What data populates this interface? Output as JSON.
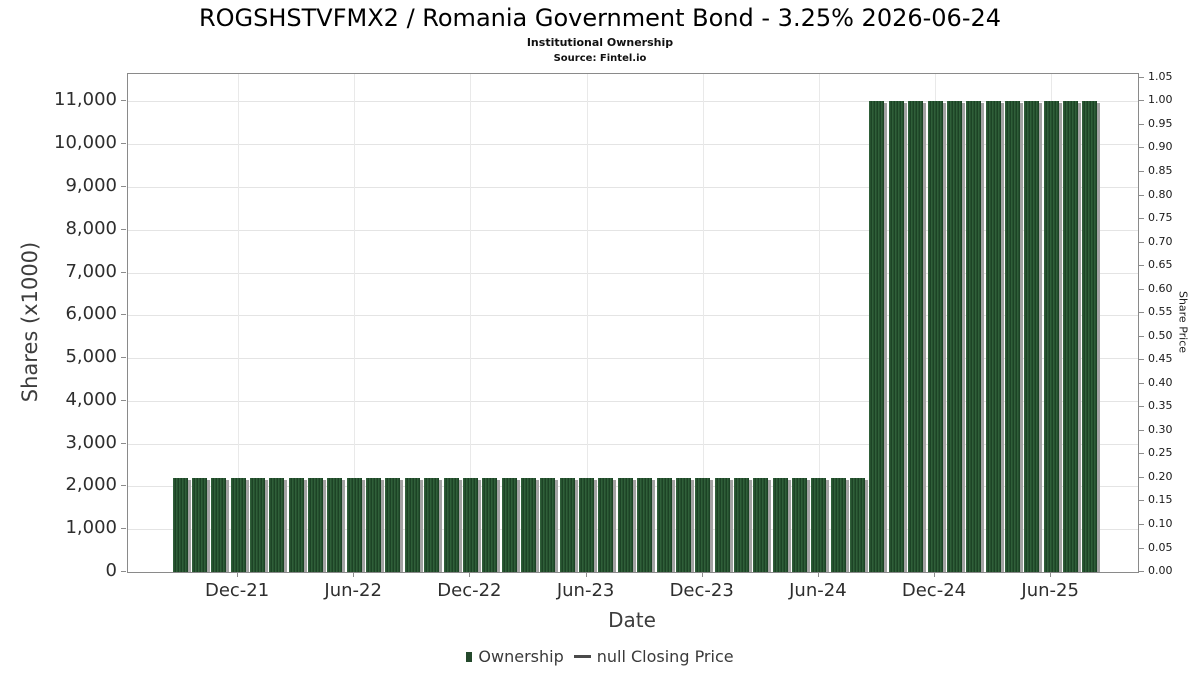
{
  "header": {
    "title": "ROGSHSTVFMX2 / Romania Government Bond - 3.25% 2026-06-24",
    "subtitle": "Institutional Ownership",
    "source": "Source: Fintel.io"
  },
  "chart_data": {
    "type": "bar",
    "title": "ROGSHSTVFMX2 / Romania Government Bond - 3.25% 2026-06-24",
    "subtitle": "Institutional Ownership",
    "source": "Source: Fintel.io",
    "xlabel": "Date",
    "ylabel_left": "Shares (x1000)",
    "ylabel_right": "Share Price",
    "grid": "horizontal gridlines every 1,000 shares; vertical gridlines at each labeled date tick",
    "categories": [
      "Sep-21",
      "Oct-21",
      "Nov-21",
      "Dec-21",
      "Jan-22",
      "Feb-22",
      "Mar-22",
      "Apr-22",
      "May-22",
      "Jun-22",
      "Jul-22",
      "Aug-22",
      "Sep-22",
      "Oct-22",
      "Nov-22",
      "Dec-22",
      "Jan-23",
      "Feb-23",
      "Mar-23",
      "Apr-23",
      "May-23",
      "Jun-23",
      "Jul-23",
      "Aug-23",
      "Sep-23",
      "Oct-23",
      "Nov-23",
      "Dec-23",
      "Jan-24",
      "Feb-24",
      "Mar-24",
      "Apr-24",
      "May-24",
      "Jun-24",
      "Jul-24",
      "Aug-24",
      "Sep-24",
      "Oct-24",
      "Nov-24",
      "Dec-24",
      "Jan-25",
      "Feb-25",
      "Mar-25",
      "Apr-25",
      "May-25",
      "Jun-25",
      "Jul-25",
      "Aug-25"
    ],
    "series": [
      {
        "name": "Ownership",
        "type": "bar",
        "units": "shares x1000",
        "color": "#275632",
        "values": [
          2200,
          2200,
          2200,
          2200,
          2200,
          2200,
          2200,
          2200,
          2200,
          2200,
          2200,
          2200,
          2200,
          2200,
          2200,
          2200,
          2200,
          2200,
          2200,
          2200,
          2200,
          2200,
          2200,
          2200,
          2200,
          2200,
          2200,
          2200,
          2200,
          2200,
          2200,
          2200,
          2200,
          2200,
          2200,
          2200,
          11000,
          11000,
          11000,
          11000,
          11000,
          11000,
          11000,
          11000,
          11000,
          11000,
          11000,
          11000
        ]
      },
      {
        "name": "null Closing Price",
        "type": "line",
        "color": "#4a4a4a",
        "values": []
      }
    ],
    "x_tick_labels": [
      "Dec-21",
      "Jun-22",
      "Dec-22",
      "Jun-23",
      "Dec-23",
      "Jun-24",
      "Dec-24",
      "Jun-25"
    ],
    "y_left": {
      "ticks": [
        0,
        1000,
        2000,
        3000,
        4000,
        5000,
        6000,
        7000,
        8000,
        9000,
        10000,
        11000
      ],
      "tick_labels": [
        "0",
        "1,000",
        "2,000",
        "3,000",
        "4,000",
        "5,000",
        "6,000",
        "7,000",
        "8,000",
        "9,000",
        "10,000",
        "11,000"
      ],
      "axis_max": 11640
    },
    "y_right": {
      "tick_labels": [
        "0.00",
        "0.05",
        "0.10",
        "0.15",
        "0.20",
        "0.25",
        "0.30",
        "0.35",
        "0.40",
        "0.45",
        "0.50",
        "0.55",
        "0.60",
        "0.65",
        "0.70",
        "0.75",
        "0.80",
        "0.85",
        "0.90",
        "0.95",
        "1.00",
        "1.05"
      ],
      "shares_per_price_unit": 11000
    }
  },
  "legend": {
    "items": [
      {
        "label": "Ownership",
        "marker": "square",
        "color": "#24492c"
      },
      {
        "label": "null Closing Price",
        "marker": "dash",
        "color": "#4a4a4a"
      }
    ]
  },
  "colors": {
    "bar_green_light": "#2f5f39",
    "bar_green_dark": "#1c4325",
    "bar_shadow": "#a3a3a3",
    "gridline": "#e4e4e4",
    "plot_border": "#8a8a8a",
    "text_dark": "#2e2e2e"
  }
}
